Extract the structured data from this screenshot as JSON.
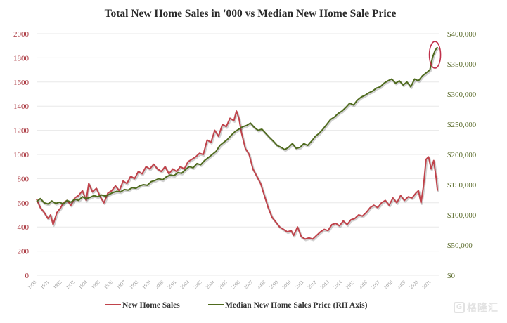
{
  "chart_data": {
    "type": "line",
    "title": "Total New Home Sales in '000 vs Median New Home Sale Price",
    "xlabel": "",
    "ylabel_left": "",
    "ylabel_right": "",
    "x_tick_labels": [
      "1990",
      "1991",
      "1992",
      "1993",
      "1994",
      "1995",
      "1996",
      "1997",
      "1998",
      "1999",
      "2000",
      "2001",
      "2002",
      "2003",
      "2004",
      "2005",
      "2006",
      "2007",
      "2008",
      "2009",
      "2010",
      "2011",
      "2012",
      "2013",
      "2014",
      "2015",
      "2016",
      "2017",
      "2018",
      "2019",
      "2020",
      "2021"
    ],
    "xlim": [
      1990,
      2021.6
    ],
    "y_left": {
      "range": [
        0,
        2000
      ],
      "ticks": [
        0,
        200,
        400,
        600,
        800,
        1000,
        1200,
        1400,
        1600,
        1800,
        2000
      ],
      "tick_labels": [
        "0",
        "200",
        "400",
        "600",
        "800",
        "1000",
        "1200",
        "1400",
        "1600",
        "1800",
        "2000"
      ]
    },
    "y_right": {
      "range": [
        0,
        400000
      ],
      "ticks": [
        0,
        50000,
        100000,
        150000,
        200000,
        250000,
        300000,
        350000,
        400000
      ],
      "tick_labels": [
        "$0",
        "$50,000",
        "$100,000",
        "$150,000",
        "$200,000",
        "$250,000",
        "$300,000",
        "$350,000",
        "$400,000"
      ]
    },
    "grid": true,
    "legend_position": "bottom",
    "series": [
      {
        "name": "New Home Sales",
        "axis": "left",
        "color": "#c0434b",
        "x": [
          1990.0,
          1990.3,
          1990.6,
          1990.9,
          1991.1,
          1991.3,
          1991.6,
          1991.9,
          1992.1,
          1992.4,
          1992.7,
          1993.0,
          1993.3,
          1993.6,
          1993.9,
          1994.1,
          1994.4,
          1994.7,
          1995.0,
          1995.3,
          1995.6,
          1995.9,
          1996.2,
          1996.5,
          1996.8,
          1997.1,
          1997.4,
          1997.7,
          1998.0,
          1998.3,
          1998.6,
          1998.9,
          1999.2,
          1999.5,
          1999.8,
          2000.1,
          2000.4,
          2000.7,
          2001.0,
          2001.3,
          2001.6,
          2001.9,
          2002.2,
          2002.5,
          2002.8,
          2003.1,
          2003.4,
          2003.7,
          2004.0,
          2004.3,
          2004.6,
          2004.9,
          2005.2,
          2005.5,
          2005.7,
          2005.9,
          2006.1,
          2006.4,
          2006.7,
          2007.0,
          2007.3,
          2007.6,
          2007.9,
          2008.2,
          2008.5,
          2008.8,
          2009.1,
          2009.4,
          2009.7,
          2010.0,
          2010.2,
          2010.5,
          2010.8,
          2011.1,
          2011.4,
          2011.7,
          2012.0,
          2012.3,
          2012.6,
          2012.9,
          2013.2,
          2013.5,
          2013.8,
          2014.1,
          2014.4,
          2014.7,
          2015.0,
          2015.3,
          2015.6,
          2015.9,
          2016.2,
          2016.5,
          2016.8,
          2017.1,
          2017.4,
          2017.7,
          2018.0,
          2018.3,
          2018.6,
          2018.9,
          2019.2,
          2019.5,
          2019.8,
          2020.0,
          2020.2,
          2020.4,
          2020.6,
          2020.8,
          2021.0,
          2021.2,
          2021.4,
          2021.5
        ],
        "values": [
          630,
          560,
          520,
          470,
          500,
          420,
          520,
          560,
          600,
          620,
          580,
          640,
          660,
          700,
          620,
          760,
          690,
          720,
          650,
          600,
          680,
          700,
          740,
          700,
          780,
          760,
          820,
          800,
          860,
          840,
          900,
          880,
          920,
          880,
          860,
          900,
          840,
          880,
          860,
          900,
          880,
          940,
          960,
          980,
          1010,
          1000,
          1120,
          1100,
          1200,
          1150,
          1250,
          1230,
          1300,
          1280,
          1360,
          1300,
          1180,
          1050,
          1000,
          880,
          820,
          760,
          660,
          560,
          480,
          440,
          400,
          380,
          360,
          370,
          330,
          400,
          320,
          300,
          310,
          300,
          330,
          360,
          380,
          370,
          420,
          430,
          410,
          450,
          420,
          460,
          470,
          500,
          490,
          520,
          560,
          580,
          560,
          600,
          620,
          580,
          640,
          600,
          660,
          620,
          650,
          640,
          680,
          700,
          600,
          740,
          960,
          980,
          880,
          950,
          800,
          700
        ]
      },
      {
        "name": "Median New Home Sales Price (RH Axis)",
        "axis": "right",
        "color": "#4f6b1e",
        "x": [
          1990.0,
          1990.3,
          1990.6,
          1990.9,
          1991.2,
          1991.5,
          1991.8,
          1992.1,
          1992.4,
          1992.7,
          1993.0,
          1993.3,
          1993.6,
          1993.9,
          1994.2,
          1994.5,
          1994.8,
          1995.1,
          1995.4,
          1995.7,
          1996.0,
          1996.3,
          1996.6,
          1996.9,
          1997.2,
          1997.5,
          1997.8,
          1998.1,
          1998.4,
          1998.7,
          1999.0,
          1999.3,
          1999.6,
          1999.9,
          2000.2,
          2000.5,
          2000.8,
          2001.1,
          2001.4,
          2001.7,
          2002.0,
          2002.3,
          2002.6,
          2002.9,
          2003.2,
          2003.5,
          2003.8,
          2004.1,
          2004.4,
          2004.7,
          2005.0,
          2005.3,
          2005.6,
          2005.9,
          2006.2,
          2006.5,
          2006.8,
          2007.1,
          2007.4,
          2007.7,
          2008.0,
          2008.3,
          2008.6,
          2008.9,
          2009.2,
          2009.5,
          2009.8,
          2010.1,
          2010.4,
          2010.7,
          2011.0,
          2011.3,
          2011.6,
          2011.9,
          2012.2,
          2012.5,
          2012.8,
          2013.1,
          2013.4,
          2013.7,
          2014.0,
          2014.3,
          2014.6,
          2014.9,
          2015.2,
          2015.5,
          2015.8,
          2016.1,
          2016.4,
          2016.7,
          2017.0,
          2017.3,
          2017.6,
          2017.9,
          2018.2,
          2018.5,
          2018.8,
          2019.1,
          2019.4,
          2019.7,
          2020.0,
          2020.3,
          2020.6,
          2020.9,
          2021.1,
          2021.3,
          2021.5
        ],
        "values": [
          122000,
          127000,
          120000,
          118000,
          123000,
          119000,
          121000,
          118000,
          124000,
          121000,
          126000,
          124000,
          130000,
          127000,
          129000,
          132000,
          130000,
          133000,
          131000,
          134000,
          137000,
          139000,
          138000,
          142000,
          141000,
          145000,
          144000,
          148000,
          150000,
          149000,
          155000,
          157000,
          160000,
          158000,
          163000,
          166000,
          165000,
          170000,
          169000,
          175000,
          180000,
          178000,
          185000,
          183000,
          190000,
          195000,
          200000,
          205000,
          215000,
          220000,
          225000,
          232000,
          238000,
          242000,
          246000,
          248000,
          252000,
          245000,
          240000,
          242000,
          235000,
          228000,
          222000,
          215000,
          212000,
          208000,
          212000,
          218000,
          210000,
          212000,
          218000,
          215000,
          222000,
          230000,
          235000,
          242000,
          250000,
          258000,
          262000,
          268000,
          272000,
          278000,
          285000,
          282000,
          290000,
          295000,
          298000,
          302000,
          305000,
          310000,
          312000,
          318000,
          322000,
          325000,
          318000,
          322000,
          315000,
          320000,
          312000,
          325000,
          322000,
          330000,
          335000,
          340000,
          360000,
          372000,
          378000
        ]
      }
    ],
    "annotations": [
      {
        "type": "ellipse",
        "description": "red circle highlighting latest median price peak",
        "x": 2021.3,
        "y_right": 365000,
        "color": "#c0304a"
      }
    ]
  },
  "legend": {
    "items": [
      {
        "label": "New Home Sales",
        "color": "#c0434b"
      },
      {
        "label": "Median New Home Sales Price (RH Axis)",
        "color": "#4f6b1e"
      }
    ]
  },
  "watermark": {
    "logo_glyph": "G",
    "text": "格隆汇"
  }
}
